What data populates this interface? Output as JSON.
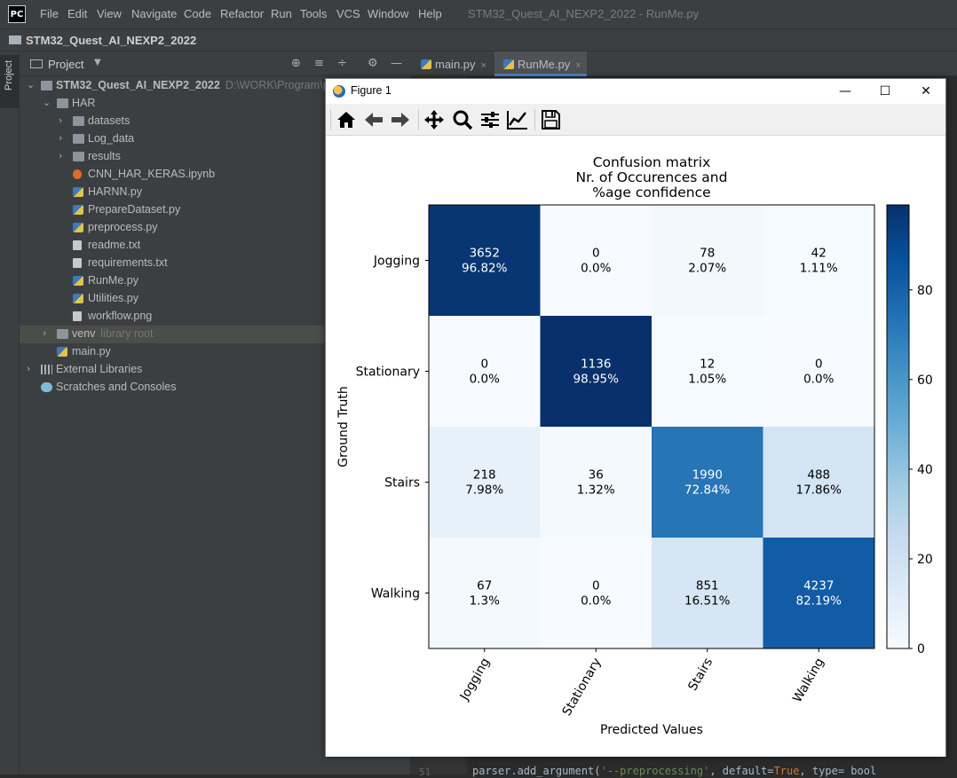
{
  "ide": {
    "logo_text": "PC",
    "menu": [
      "File",
      "Edit",
      "View",
      "Navigate",
      "Code",
      "Refactor",
      "Run",
      "Tools",
      "VCS",
      "Window",
      "Help"
    ],
    "window_title": "STM32_Quest_AI_NEXP2_2022 - RunMe.py",
    "nav_project": "STM32_Quest_AI_NEXP2_2022",
    "side_tab_label": "Project",
    "project_panel_title": "Project",
    "tree": [
      {
        "label": "STM32_Quest_AI_NEXP2_2022",
        "extra": "D:\\WORK\\Program\\p",
        "depth": 0,
        "type": "folder",
        "expanded": true,
        "bold": true
      },
      {
        "label": "HAR",
        "depth": 1,
        "type": "folder",
        "expanded": true
      },
      {
        "label": "datasets",
        "depth": 2,
        "type": "folder",
        "expanded": false
      },
      {
        "label": "Log_data",
        "depth": 2,
        "type": "folder",
        "expanded": false
      },
      {
        "label": "results",
        "depth": 2,
        "type": "folder",
        "expanded": false
      },
      {
        "label": "CNN_HAR_KERAS.ipynb",
        "depth": 2,
        "type": "notebook"
      },
      {
        "label": "HARNN.py",
        "depth": 2,
        "type": "python"
      },
      {
        "label": "PrepareDataset.py",
        "depth": 2,
        "type": "python"
      },
      {
        "label": "preprocess.py",
        "depth": 2,
        "type": "python"
      },
      {
        "label": "readme.txt",
        "depth": 2,
        "type": "text"
      },
      {
        "label": "requirements.txt",
        "depth": 2,
        "type": "text"
      },
      {
        "label": "RunMe.py",
        "depth": 2,
        "type": "python"
      },
      {
        "label": "Utilities.py",
        "depth": 2,
        "type": "python"
      },
      {
        "label": "workflow.png",
        "depth": 2,
        "type": "text"
      },
      {
        "label": "venv",
        "extra": "library root",
        "depth": 1,
        "type": "folder",
        "expanded": false,
        "selected": true
      },
      {
        "label": "main.py",
        "depth": 1,
        "type": "python"
      },
      {
        "label": "External Libraries",
        "depth": 0,
        "type": "library",
        "expanded": false
      },
      {
        "label": "Scratches and Consoles",
        "depth": 0,
        "type": "scratch"
      }
    ],
    "editor_tabs": [
      {
        "label": "main.py",
        "close": "×",
        "active": false
      },
      {
        "label": "RunMe.py",
        "close": "×",
        "active": true
      }
    ],
    "gutter_line": "51",
    "code_prefix": "parser.add_argument(",
    "code_string": "'--preprocessing'",
    "code_mid": ", default=",
    "code_kw": "True",
    "code_end": ", type= bool"
  },
  "figure": {
    "title": "Figure 1",
    "window_buttons": {
      "minimize": "—",
      "maximize": "☐",
      "close": "✕"
    },
    "toolbar": [
      "home-icon",
      "back-icon",
      "forward-icon",
      "pan-icon",
      "zoom-icon",
      "subplots-icon",
      "customize-icon",
      "save-icon"
    ]
  },
  "chart_data": {
    "type": "heatmap",
    "title_lines": [
      "Confusion matrix",
      "Nr. of Occurences and",
      "%age confidence"
    ],
    "xlabel": "Predicted Values",
    "ylabel": "Ground Truth",
    "x_categories": [
      "Jogging",
      "Stationary",
      "Stairs",
      "Walking"
    ],
    "y_categories": [
      "Jogging",
      "Stationary",
      "Stairs",
      "Walking"
    ],
    "counts": [
      [
        3652,
        0,
        78,
        42
      ],
      [
        0,
        1136,
        12,
        0
      ],
      [
        218,
        36,
        1990,
        488
      ],
      [
        67,
        0,
        851,
        4237
      ]
    ],
    "percent_labels": [
      [
        "96.82%",
        "0.0%",
        "2.07%",
        "1.11%"
      ],
      [
        "0.0%",
        "98.95%",
        "1.05%",
        "0.0%"
      ],
      [
        "7.98%",
        "1.32%",
        "72.84%",
        "17.86%"
      ],
      [
        "1.3%",
        "0.0%",
        "16.51%",
        "82.19%"
      ]
    ],
    "percent_values": [
      [
        96.82,
        0.0,
        2.07,
        1.11
      ],
      [
        0.0,
        98.95,
        1.05,
        0.0
      ],
      [
        7.98,
        1.32,
        72.84,
        17.86
      ],
      [
        1.3,
        0.0,
        16.51,
        82.19
      ]
    ],
    "colormap": "Blues",
    "color_range": [
      0,
      98.95
    ],
    "colorbar_ticks": [
      0,
      20,
      40,
      60,
      80
    ],
    "colorbar_tick_labels": [
      "0",
      "20",
      "40",
      "60",
      "80"
    ]
  }
}
